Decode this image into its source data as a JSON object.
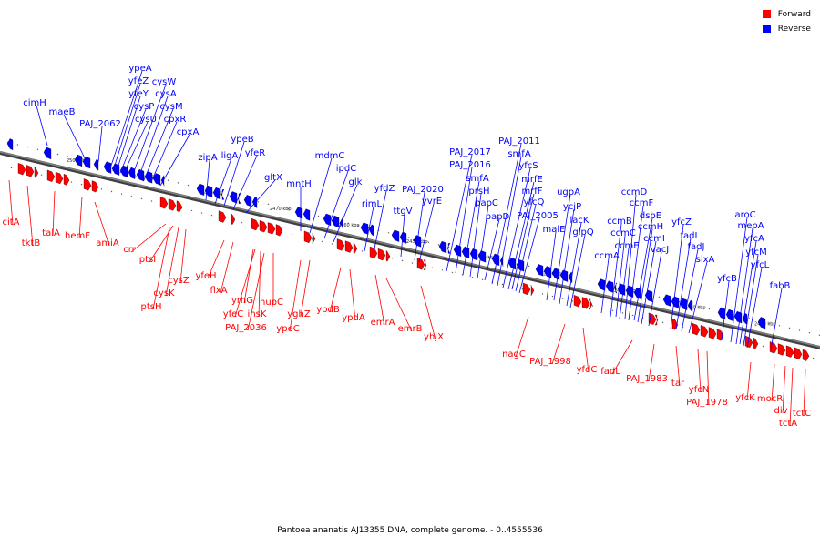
{
  "caption": "Pantoea ananatis AJ13355 DNA, complete genome. - 0..4555536",
  "legend": [
    {
      "label": "Forward",
      "color": "#ff0000"
    },
    {
      "label": "Reverse",
      "color": "#0000ff"
    }
  ],
  "colors": {
    "forward": "#ff0000",
    "reverse": "#0000ff",
    "backbone": "#808080"
  },
  "ticks": [
    "2500 kbp",
    "2490 kbp",
    "2480 kbp",
    "2470 kbp",
    "2460 kbp",
    "2450 kbp",
    "2440 kbp",
    "2430 kbp",
    "2420 kbp",
    "2410 kbp",
    "2400 kbp"
  ],
  "reverse_genes": [
    "cimH",
    "maeB",
    "PAJ_2062",
    "ypeA",
    "yfeZ",
    "yfeY",
    "cysP",
    "cysU",
    "cysW",
    "cysA",
    "cysM",
    "cpxR",
    "cpxA",
    "zipA",
    "ligA",
    "ypeB",
    "yfeR",
    "gltX",
    "mntH",
    "mdmC",
    "ipdC",
    "glk",
    "rimL",
    "yfdZ",
    "ttgV",
    "PAJ_2020",
    "yvrE",
    "PAJ_2017",
    "PAJ_2016",
    "smfA",
    "prsH",
    "papC",
    "papD",
    "PAJ_2011",
    "smfA",
    "yfcS",
    "mrfE",
    "mrfF",
    "yfcQ",
    "PAJ_2005",
    "malE",
    "ugpA",
    "ycjP",
    "lacK",
    "glpQ",
    "ccmA",
    "ccmB",
    "ccmC",
    "ccmE",
    "ccmD",
    "ccmF",
    "dsbE",
    "ccmH",
    "ccmI",
    "vacJ",
    "yfcZ",
    "fadI",
    "fadJ",
    "sixA",
    "yfcB",
    "aroC",
    "mepA",
    "yfcA",
    "yfcM",
    "yfcL",
    "fabB"
  ],
  "forward_genes": [
    "citA",
    "tktB",
    "talA",
    "hemF",
    "amiA",
    "crr",
    "ptsI",
    "cysK",
    "ptsH",
    "cysZ",
    "yfeH",
    "flxA",
    "yrhG",
    "yfeC",
    "insK",
    "PAJ_2036",
    "nupC",
    "yghZ",
    "ypeC",
    "ypdB",
    "ypdA",
    "emrA",
    "emrB",
    "yhjX",
    "nagC",
    "PAJ_1998",
    "yfdC",
    "fadL",
    "PAJ_1983",
    "tar",
    "yfcN",
    "PAJ_1978",
    "yfcK",
    "mocR",
    "div",
    "tctA",
    "tctC"
  ]
}
